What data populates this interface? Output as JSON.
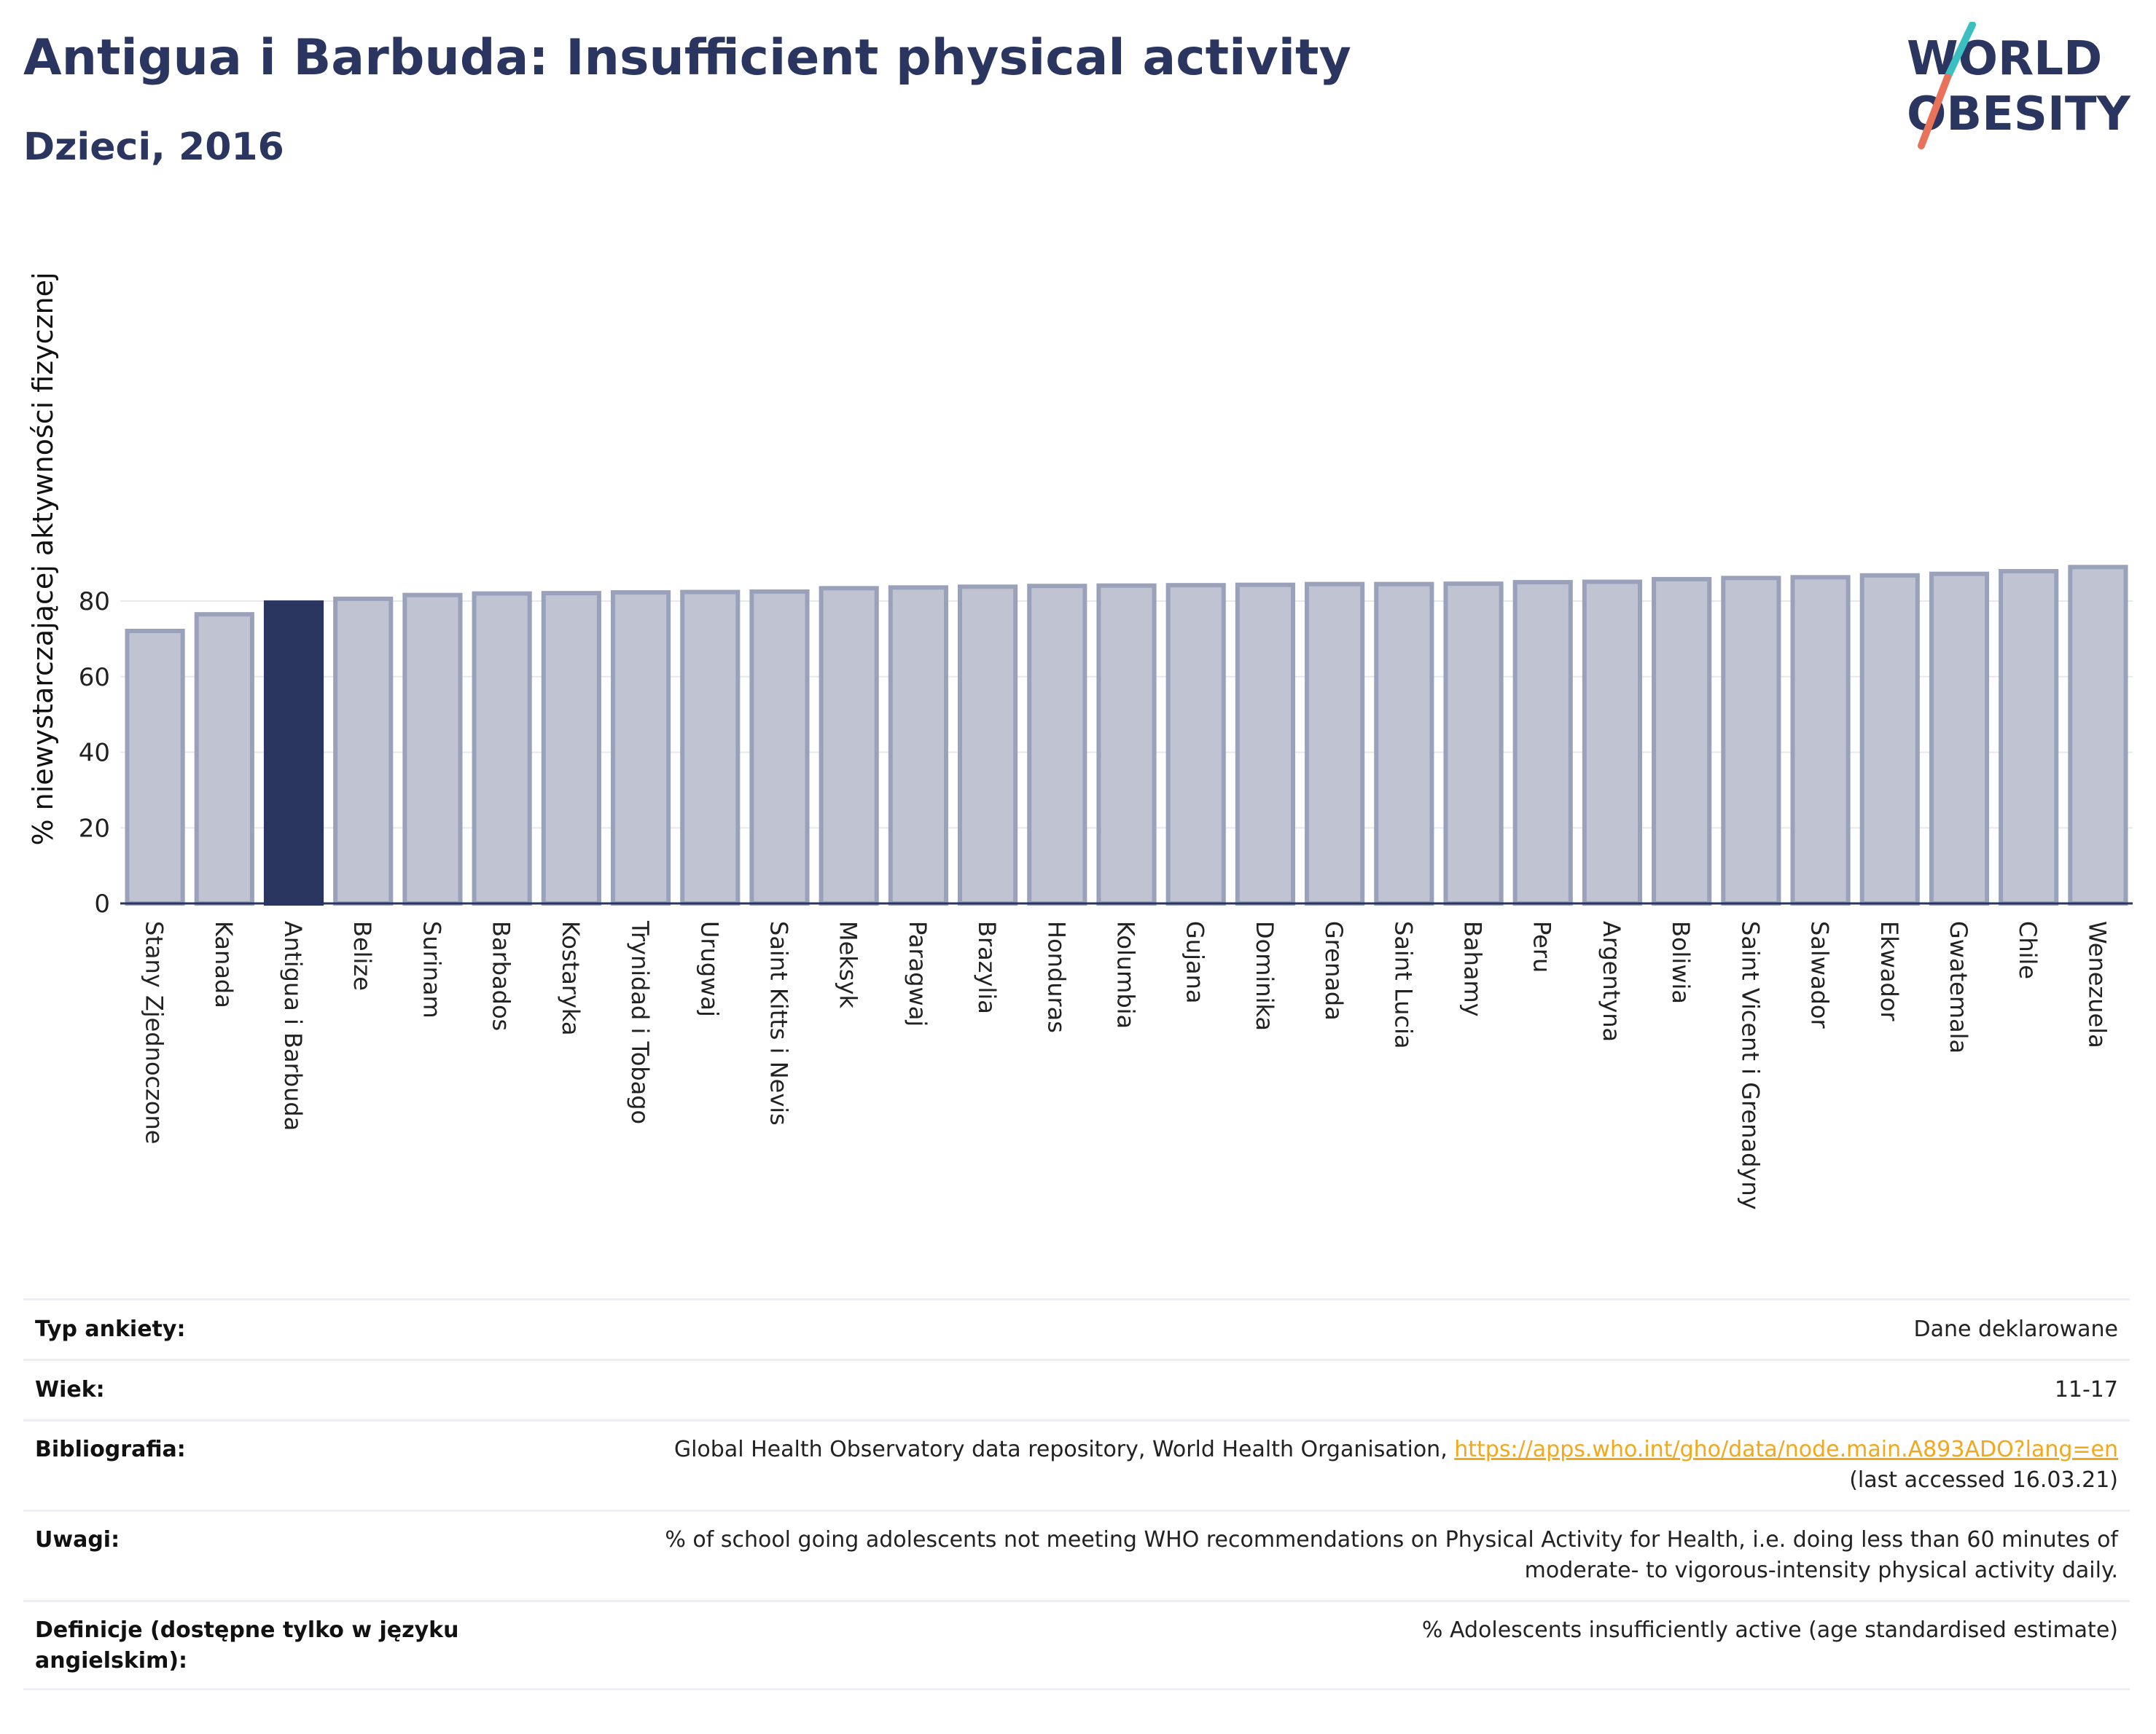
{
  "header": {
    "title": "Antigua i Barbuda: Insufficient physical activity",
    "subtitle": "Dzieci, 2016"
  },
  "logo": {
    "line1": "WORLD",
    "line2": "OBESITY"
  },
  "colors": {
    "highlight": "#2a3560",
    "bar_fill": "#c0c4d2",
    "bar_stroke": "#9aa1ba",
    "logo_teal": "#3cbfc1",
    "logo_red": "#e8735a",
    "link": "#f3a71b"
  },
  "chart_data": {
    "type": "bar",
    "title": "Antigua i Barbuda: Insufficient physical activity",
    "subtitle": "Dzieci, 2016",
    "ylabel": "% niewystarczającej aktywności fizycznej",
    "xlabel": "",
    "ylim": [
      0,
      90
    ],
    "yticks": [
      0,
      20,
      40,
      60,
      80
    ],
    "grid": true,
    "highlight": "Antigua i Barbuda",
    "categories": [
      "Stany Zjednoczone",
      "Kanada",
      "Antigua i Barbuda",
      "Belize",
      "Surinam",
      "Barbados",
      "Kostaryka",
      "Trynidad i Tobago",
      "Urugwaj",
      "Saint Kitts i Nevis",
      "Meksyk",
      "Paragwaj",
      "Brazylia",
      "Honduras",
      "Kolumbia",
      "Gujana",
      "Dominika",
      "Grenada",
      "Saint Lucia",
      "Bahamy",
      "Peru",
      "Argentyna",
      "Boliwia",
      "Saint Vicent i Grenadyny",
      "Salwador",
      "Ekwador",
      "Gwatemala",
      "Chile",
      "Wenezuela"
    ],
    "values": [
      72.1,
      76.5,
      79.6,
      80.6,
      81.6,
      82.0,
      82.1,
      82.3,
      82.4,
      82.5,
      83.4,
      83.6,
      83.8,
      84.0,
      84.1,
      84.2,
      84.3,
      84.5,
      84.5,
      84.6,
      85.0,
      85.1,
      85.8,
      86.1,
      86.3,
      86.8,
      87.2,
      87.9,
      89.0
    ]
  },
  "info": {
    "survey_type": {
      "label": "Typ ankiety:",
      "value": "Dane deklarowane"
    },
    "age": {
      "label": "Wiek:",
      "value": "11-17"
    },
    "bibliography": {
      "label": "Bibliografia:",
      "text": "Global Health Observatory data repository, World Health Organisation, ",
      "link": "https://apps.who.int/gho/data/node.main.A893ADO?lang=en",
      "accessed": "(last accessed 16.03.21)"
    },
    "notes": {
      "label": "Uwagi:",
      "line1": "% of school going adolescents not meeting WHO recommendations on Physical Activity for Health, i.e. doing less than 60 minutes of",
      "line2": "moderate- to vigorous-intensity physical activity daily."
    },
    "definitions": {
      "label_line1": "Definicje (dostępne tylko w języku",
      "label_line2": "angielskim):",
      "value": "% Adolescents insufficiently active (age standardised estimate)"
    }
  }
}
